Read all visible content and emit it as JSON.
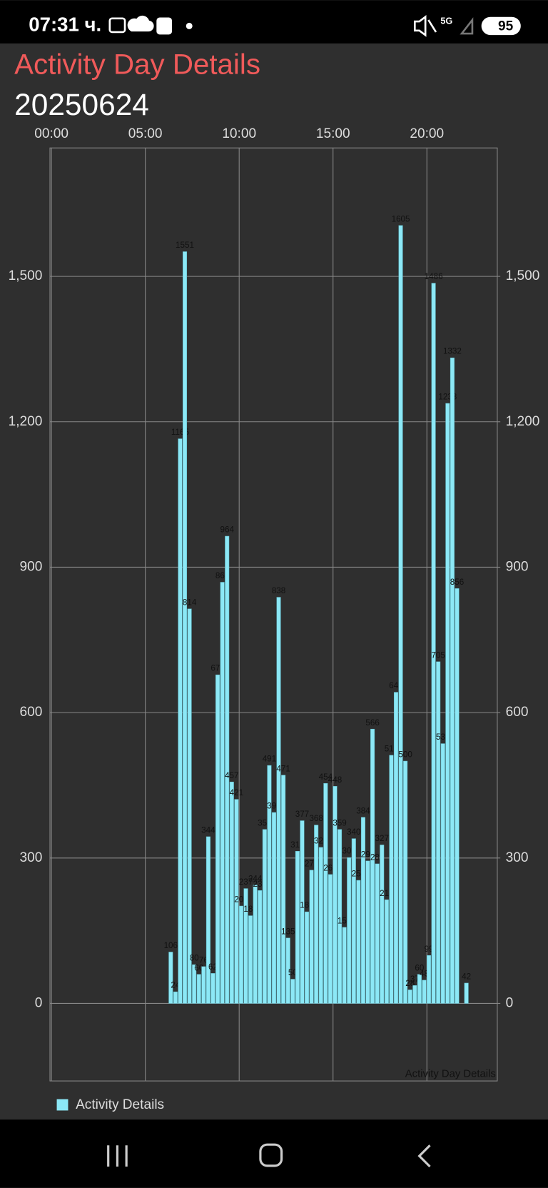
{
  "status_bar": {
    "time": "07:31 ч.",
    "network": "5G",
    "battery": "95"
  },
  "header": {
    "title": "Activity Day Details",
    "date": "20250624"
  },
  "chart_data": {
    "type": "bar",
    "description": "Activity Day Details",
    "x": [
      6.25,
      6.5,
      6.75,
      7,
      7.25,
      7.5,
      7.75,
      8,
      8.25,
      8.5,
      8.75,
      9,
      9.25,
      9.5,
      9.75,
      10,
      10.25,
      10.5,
      10.75,
      11,
      11.25,
      11.5,
      11.75,
      12,
      12.25,
      12.5,
      12.75,
      13,
      13.25,
      13.5,
      13.75,
      14,
      14.25,
      14.5,
      14.75,
      15,
      15.25,
      15.5,
      15.75,
      16,
      16.25,
      16.5,
      16.75,
      17,
      17.25,
      17.5,
      17.75,
      18,
      18.25,
      18.5,
      18.75,
      19,
      19.25,
      19.5,
      19.75,
      20,
      20.25,
      20.5,
      20.75,
      21,
      21.25,
      21.5,
      22
    ],
    "series": [
      {
        "name": "Activity Details",
        "color": "#8ce8f6",
        "values": [
          106,
          24,
          1165,
          1551,
          814,
          80,
          60,
          76,
          344,
          62,
          678,
          869,
          964,
          457,
          421,
          201,
          237,
          181,
          244,
          233,
          359,
          491,
          394,
          838,
          471,
          135,
          50,
          314,
          377,
          189,
          275,
          368,
          322,
          454,
          266,
          448,
          359,
          157,
          301,
          340,
          254,
          384,
          294,
          566,
          288,
          327,
          214,
          512,
          642,
          1605,
          500,
          28,
          37,
          60,
          48,
          99,
          1486,
          705,
          536,
          1238,
          1332,
          856,
          42
        ]
      }
    ],
    "xlim": [
      -0.08,
      23.75
    ],
    "xticks": [
      {
        "value": 0,
        "label": "00:00"
      },
      {
        "value": 5,
        "label": "05:00"
      },
      {
        "value": 10,
        "label": "10:00"
      },
      {
        "value": 15,
        "label": "15:00"
      },
      {
        "value": 20,
        "label": "20:00"
      }
    ],
    "ylim": [
      -160,
      1765
    ],
    "yticks": [
      0,
      300,
      600,
      900,
      {
        "value": 1200,
        "label": "1,200"
      },
      {
        "value": 1500,
        "label": "1,500"
      }
    ],
    "y2lim": [
      -160,
      1765
    ],
    "y2ticks": [
      0,
      300,
      600,
      900,
      {
        "value": 1200,
        "label": "1,200"
      },
      {
        "value": 1500,
        "label": "1,500"
      }
    ],
    "grid": true,
    "legend": "bottom-left"
  }
}
